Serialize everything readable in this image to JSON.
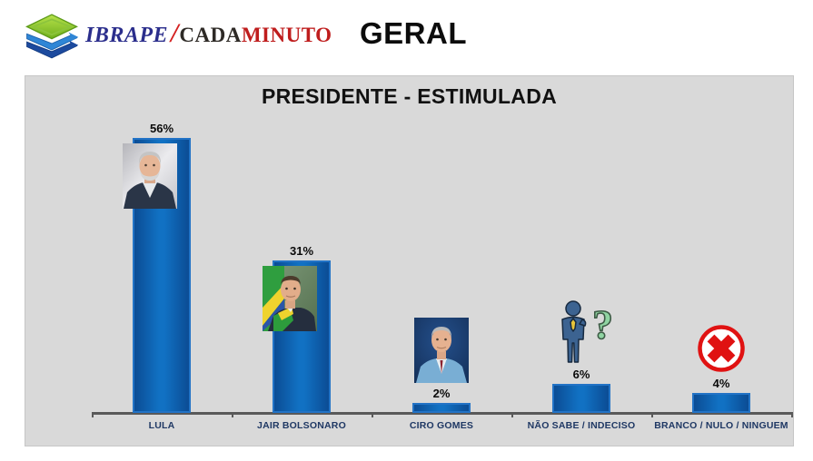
{
  "header": {
    "logo_icon": "layers-arrows-logo-icon",
    "brand": {
      "part1": "IBRAPE",
      "separator": "/",
      "part2": "CADA",
      "part3": "MINUTO"
    },
    "section_label": "GERAL"
  },
  "chart": {
    "title": "PRESIDENTE - ESTIMULADA"
  },
  "chart_data": {
    "type": "bar",
    "title": "PRESIDENTE - ESTIMULADA",
    "categories": [
      "LULA",
      "JAIR BOLSONARO",
      "CIRO GOMES",
      "NÃO SABE / INDECISO",
      "BRANCO / NULO / NINGUEM"
    ],
    "values": [
      56,
      31,
      2,
      6,
      4
    ],
    "value_labels": [
      "56%",
      "31%",
      "2%",
      "6%",
      "4%"
    ],
    "markers": [
      "lula-photo",
      "bolsonaro-photo",
      "ciro-gomes-photo",
      "undecided-person-question-icon",
      "red-x-circle-icon"
    ],
    "ylim": [
      0,
      60
    ],
    "grid": false,
    "legend": false,
    "panel_background": "#d9d9d9",
    "bar_fill_center": "#1171c3",
    "bar_fill_edge": "#0b4c94",
    "bar_border_color": "#2273c6",
    "axis_color": "#595959",
    "category_label_color": "#1f3864",
    "value_label_color": "#0a0a0a"
  }
}
